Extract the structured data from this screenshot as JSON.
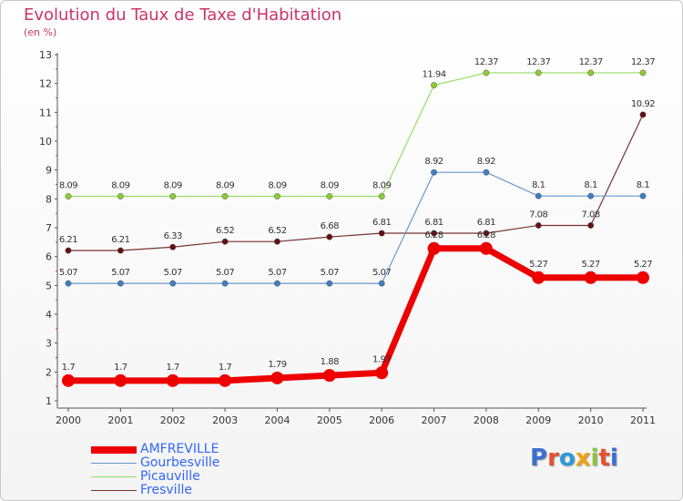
{
  "title": "Evolution du Taux de Taxe d'Habitation",
  "subtitle": "(en %)",
  "logo": {
    "text": "Proxiti",
    "colors": [
      "#3b6fd1",
      "#e8502e",
      "#2d9ad8",
      "#f2a20f",
      "#8bc53f",
      "#e8502e",
      "#3b6fd1"
    ]
  },
  "chart_data": {
    "type": "line",
    "x": [
      "2000",
      "2001",
      "2002",
      "2003",
      "2004",
      "2005",
      "2006",
      "2007",
      "2008",
      "2009",
      "2010",
      "2011"
    ],
    "ylim": [
      1,
      13
    ],
    "yticks": [
      "1",
      "2",
      "3",
      "4",
      "5",
      "6",
      "7",
      "8",
      "9",
      "10",
      "11",
      "12",
      "13"
    ],
    "grid": false,
    "legend_position": "bottom-left",
    "series": [
      {
        "name": "Picauville",
        "color": "#99dd66",
        "point_color": "#8ccc33",
        "width": 1.2,
        "values": [
          8.09,
          8.09,
          8.09,
          8.09,
          8.09,
          8.09,
          8.09,
          11.94,
          12.37,
          12.37,
          12.37,
          12.37
        ],
        "labels": [
          "8.09",
          "8.09",
          "8.09",
          "8.09",
          "8.09",
          "8.09",
          "8.09",
          "11.94",
          "12.37",
          "12.37",
          "12.37",
          "12.37"
        ]
      },
      {
        "name": "Fresville",
        "color": "#773333",
        "point_color": "#661111",
        "width": 1.2,
        "values": [
          6.21,
          6.21,
          6.33,
          6.52,
          6.52,
          6.68,
          6.81,
          6.81,
          6.81,
          7.08,
          7.08,
          10.92
        ],
        "labels": [
          "6.21",
          "6.21",
          "6.33",
          "6.52",
          "6.52",
          "6.68",
          "6.81",
          "6.81",
          "6.81",
          "7.08",
          "7.08",
          "10.92"
        ]
      },
      {
        "name": "Gourbesville",
        "color": "#6699cc",
        "point_color": "#3f7fc0",
        "width": 1.2,
        "values": [
          5.07,
          5.07,
          5.07,
          5.07,
          5.07,
          5.07,
          5.07,
          8.92,
          8.92,
          8.1,
          8.1,
          8.1
        ],
        "labels": [
          "5.07",
          "5.07",
          "5.07",
          "5.07",
          "5.07",
          "5.07",
          "5.07",
          "8.92",
          "8.92",
          "8.1",
          "8.1",
          "8.1"
        ]
      },
      {
        "name": "AMFREVILLE",
        "color": "#ee0000",
        "point_color": "#ee0000",
        "width": 7,
        "values": [
          1.7,
          1.7,
          1.7,
          1.7,
          1.79,
          1.88,
          1.97,
          6.28,
          6.28,
          5.27,
          5.27,
          5.27
        ],
        "labels": [
          "1.7",
          "1.7",
          "1.7",
          "1.7",
          "1.79",
          "1.88",
          "1.97",
          "6.28",
          "6.28",
          "5.27",
          "5.27",
          "5.27"
        ]
      }
    ],
    "legend": [
      {
        "name": "AMFREVILLE",
        "color": "#ee0000",
        "text_color": "#3366ff"
      },
      {
        "name": "Gourbesville",
        "color": "#6699cc",
        "text_color": "#3366ff"
      },
      {
        "name": "Picauville",
        "color": "#99dd66",
        "text_color": "#3366ff"
      },
      {
        "name": "Fresville",
        "color": "#773333",
        "text_color": "#3366ff"
      }
    ]
  }
}
